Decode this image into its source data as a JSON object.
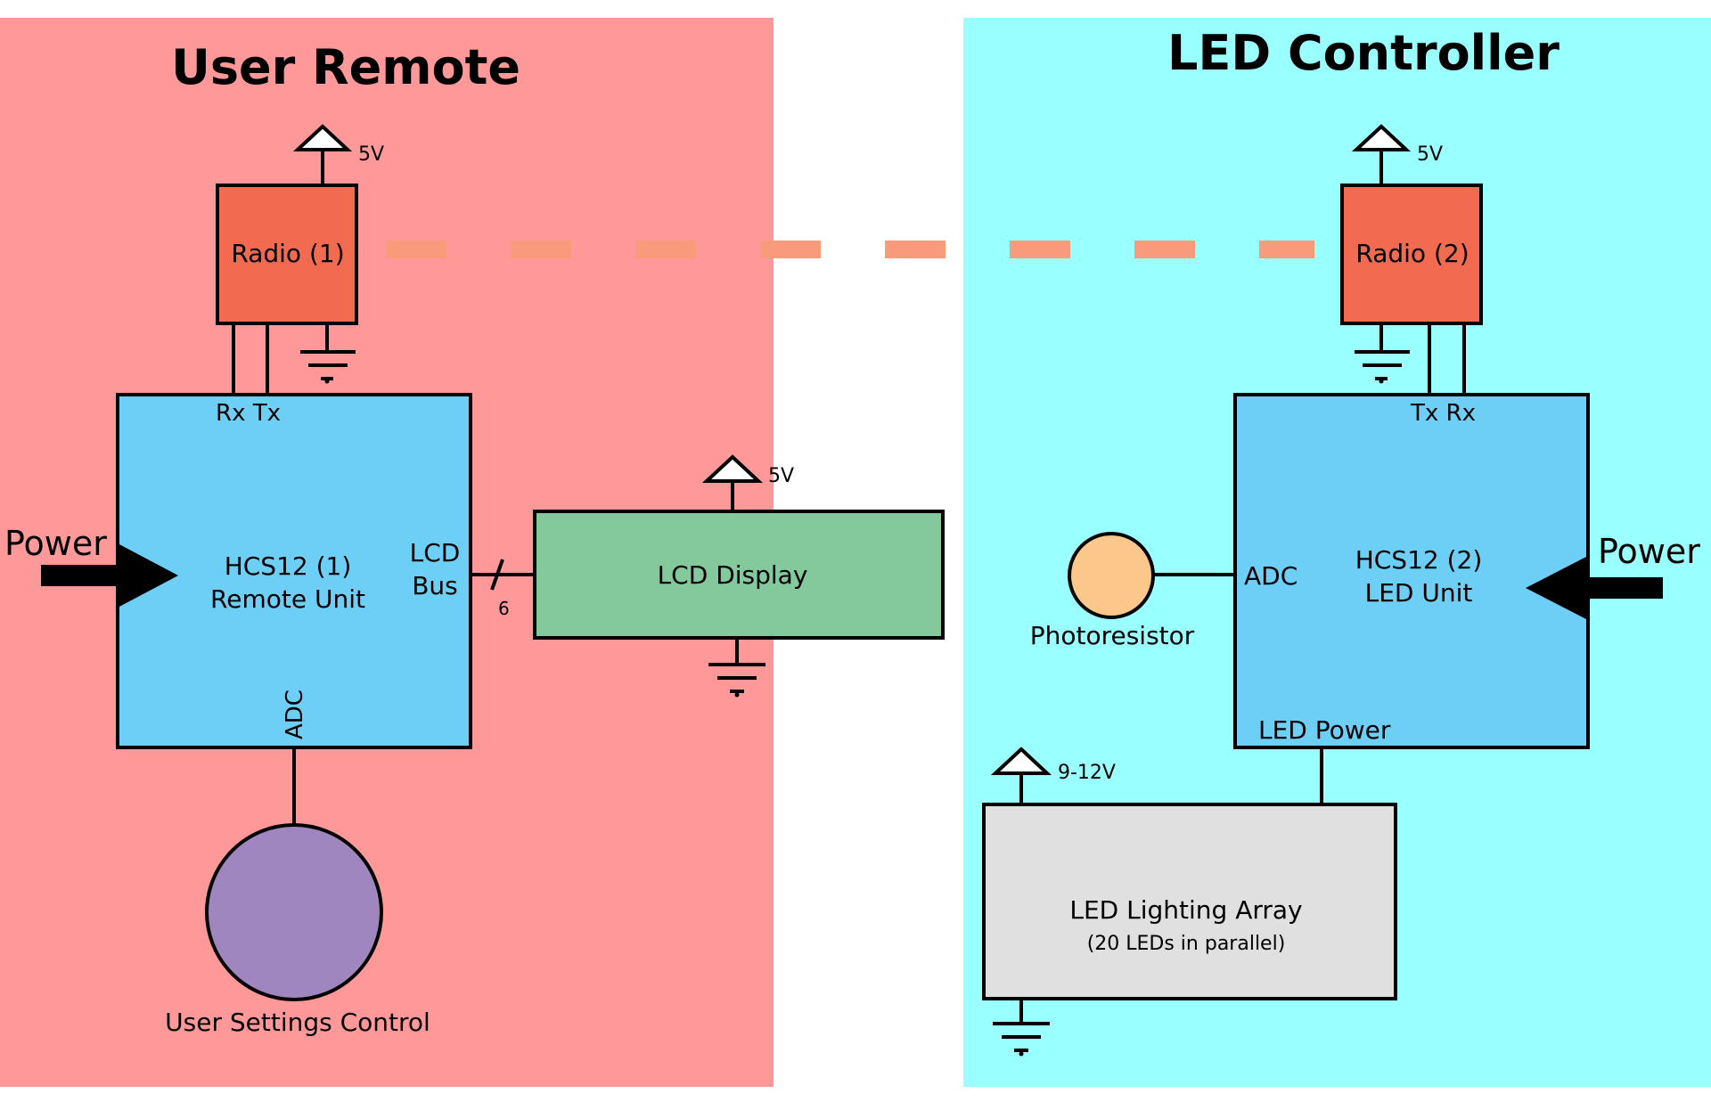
{
  "regions": {
    "remote_title": "User Remote",
    "controller_title": "LED Controller"
  },
  "remote": {
    "radio_label": "Radio (1)",
    "radio_supply": "5V",
    "mcu_line1": "HCS12 (1)",
    "mcu_line2": "Remote Unit",
    "rx_tx": "Rx Tx",
    "lcd_bus_line1": "LCD",
    "lcd_bus_line2": "Bus",
    "bus_width": "6",
    "adc_label": "ADC",
    "power_label": "Power",
    "user_control_label": "User Settings Control"
  },
  "lcd": {
    "label": "LCD Display",
    "supply": "5V"
  },
  "controller": {
    "radio_label": "Radio (2)",
    "radio_supply": "5V",
    "mcu_line1": "HCS12 (2)",
    "mcu_line2": "LED Unit",
    "tx_rx": "Tx Rx",
    "adc_label": "ADC",
    "led_power_label": "LED Power",
    "power_label": "Power",
    "photoresistor_label": "Photoresistor",
    "led_array_line1": "LED Lighting Array",
    "led_array_line2": "(20 LEDs in parallel)",
    "led_array_supply": "9-12V"
  },
  "colors": {
    "remote_bg": "#ff9999",
    "controller_bg": "#99ffff",
    "mcu_fill": "#6ecff6",
    "radio_fill": "#f26b50",
    "radio_link": "#f79b7b",
    "lcd_fill": "#84c99b",
    "photoresistor_fill": "#fcc78b",
    "user_control_fill": "#a086be",
    "led_array_fill": "#e0e0e0"
  }
}
